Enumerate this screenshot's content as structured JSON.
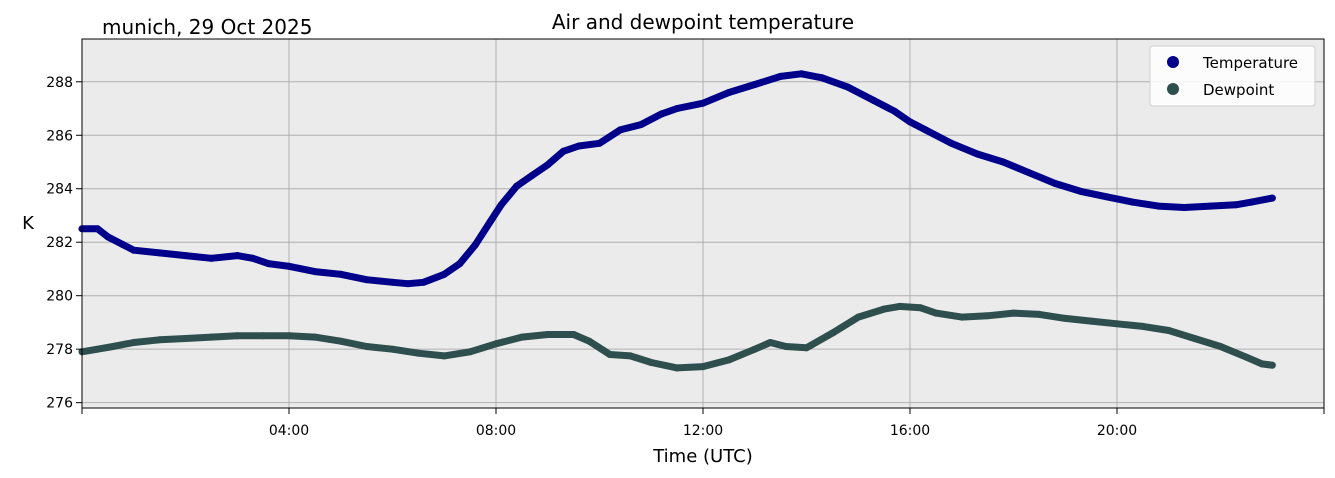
{
  "chart_data": {
    "type": "line",
    "title": "Air and dewpoint temperature",
    "location_label": "munich, 29 Oct 2025",
    "xlabel": "Time (UTC)",
    "ylabel": "K",
    "xlim_hours": [
      0,
      24
    ],
    "ylim": [
      275.8,
      289.6
    ],
    "x_ticks": [
      {
        "hour": 4,
        "label": "04:00"
      },
      {
        "hour": 8,
        "label": "08:00"
      },
      {
        "hour": 12,
        "label": "12:00"
      },
      {
        "hour": 16,
        "label": "16:00"
      },
      {
        "hour": 20,
        "label": "20:00"
      }
    ],
    "y_ticks": [
      276,
      278,
      280,
      282,
      284,
      286,
      288
    ],
    "grid": true,
    "legend_position": "top-right",
    "series": [
      {
        "name": "Temperature",
        "color": "#00008b",
        "raw_color": "#6fa7a8",
        "x": [
          0,
          0.3,
          0.5,
          0.8,
          1.0,
          1.5,
          2.0,
          2.5,
          3.0,
          3.3,
          3.6,
          4.0,
          4.5,
          5.0,
          5.5,
          6.0,
          6.3,
          6.6,
          7.0,
          7.3,
          7.6,
          7.9,
          8.1,
          8.4,
          8.7,
          9.0,
          9.3,
          9.6,
          10.0,
          10.4,
          10.8,
          11.2,
          11.5,
          12.0,
          12.5,
          13.0,
          13.5,
          13.9,
          14.3,
          14.8,
          15.3,
          15.7,
          16.0,
          16.3,
          16.8,
          17.3,
          17.8,
          18.3,
          18.8,
          19.3,
          19.8,
          20.3,
          20.8,
          21.3,
          21.8,
          22.3,
          22.6,
          23.0
        ],
        "values": [
          282.5,
          282.5,
          282.2,
          281.9,
          281.7,
          281.6,
          281.5,
          281.4,
          281.5,
          281.4,
          281.2,
          281.1,
          280.9,
          280.8,
          280.6,
          280.5,
          280.45,
          280.5,
          280.8,
          281.2,
          281.9,
          282.8,
          283.4,
          284.1,
          284.5,
          284.9,
          285.4,
          285.6,
          285.7,
          286.2,
          286.4,
          286.8,
          287.0,
          287.2,
          287.6,
          287.9,
          288.2,
          288.3,
          288.15,
          287.8,
          287.3,
          286.9,
          286.5,
          286.2,
          285.7,
          285.3,
          285.0,
          284.6,
          284.2,
          283.9,
          283.7,
          283.5,
          283.35,
          283.3,
          283.35,
          283.4,
          283.5,
          283.65
        ]
      },
      {
        "name": "Dewpoint",
        "color": "#2f4f4f",
        "raw_color": "#1f9be6",
        "x": [
          0,
          0.3,
          0.6,
          1.0,
          1.5,
          2.0,
          2.5,
          3.0,
          3.5,
          4.0,
          4.5,
          5.0,
          5.5,
          6.0,
          6.5,
          7.0,
          7.5,
          8.0,
          8.5,
          9.0,
          9.5,
          9.8,
          10.2,
          10.6,
          11.0,
          11.5,
          12.0,
          12.5,
          13.0,
          13.3,
          13.6,
          14.0,
          14.5,
          15.0,
          15.5,
          15.8,
          16.2,
          16.5,
          17.0,
          17.5,
          18.0,
          18.5,
          19.0,
          19.5,
          20.0,
          20.5,
          21.0,
          21.5,
          22.0,
          22.5,
          22.8,
          23.0
        ],
        "values": [
          277.9,
          278.0,
          278.1,
          278.25,
          278.35,
          278.4,
          278.45,
          278.5,
          278.5,
          278.5,
          278.45,
          278.3,
          278.1,
          278.0,
          277.85,
          277.75,
          277.9,
          278.2,
          278.45,
          278.55,
          278.55,
          278.3,
          277.8,
          277.75,
          277.5,
          277.3,
          277.35,
          277.6,
          278.0,
          278.25,
          278.1,
          278.05,
          278.6,
          279.2,
          279.5,
          279.6,
          279.55,
          279.35,
          279.2,
          279.25,
          279.35,
          279.3,
          279.15,
          279.05,
          278.95,
          278.85,
          278.7,
          278.4,
          278.1,
          277.7,
          277.45,
          277.4
        ]
      }
    ]
  }
}
